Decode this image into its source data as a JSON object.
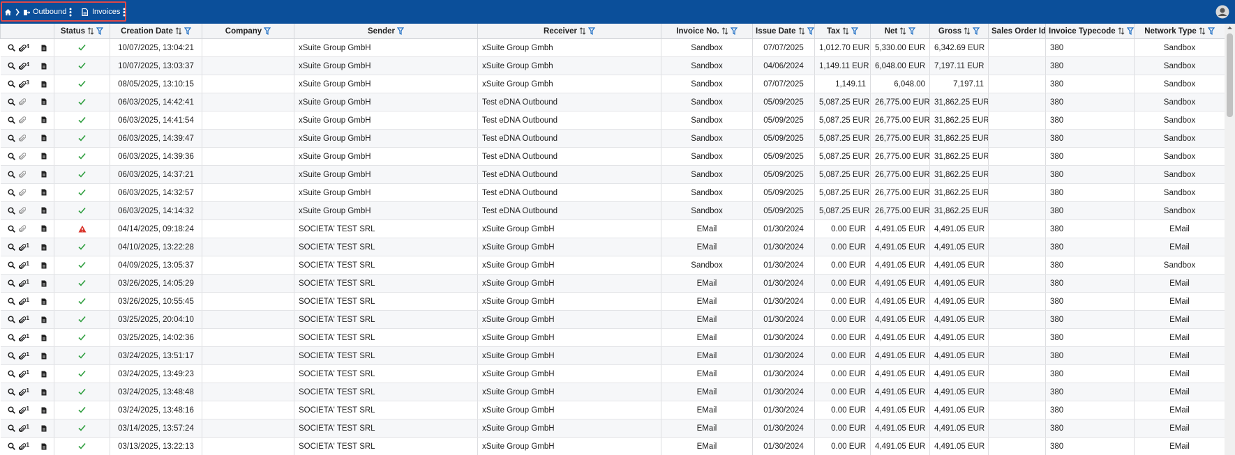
{
  "breadcrumb": [
    "Outbound",
    "Invoices"
  ],
  "table": {
    "columns": [
      "Status",
      "Creation Date",
      "Company",
      "Sender",
      "Receiver",
      "Invoice No.",
      "Issue Date",
      "Tax",
      "Net",
      "Gross",
      "Sales Order Id",
      "Invoice Typecode",
      "Network Type"
    ],
    "rows": [
      {
        "attachments": 4,
        "status": "ok",
        "created": "10/07/2025, 13:04:21",
        "sender": "xSuite Group GmbH",
        "receiver": "xSuite Group Gmbh",
        "invoice_no": "Sandbox",
        "issue_date": "07/07/2025",
        "tax": "1,012.70 EUR",
        "net": "5,330.00 EUR",
        "gross": "6,342.69 EUR",
        "typecode": 380,
        "network_type": "Sandbox"
      },
      {
        "attachments": 4,
        "status": "ok",
        "created": "10/07/2025, 13:03:37",
        "sender": "xSuite Group GmbH",
        "receiver": "xSuite Group Gmbh",
        "invoice_no": "Sandbox",
        "issue_date": "04/06/2024",
        "tax": "1,149.11 EUR",
        "net": "6,048.00 EUR",
        "gross": "7,197.11 EUR",
        "typecode": 380,
        "network_type": "Sandbox"
      },
      {
        "attachments": 3,
        "status": "ok",
        "created": "08/05/2025, 13:10:15",
        "sender": "xSuite Group GmbH",
        "receiver": "xSuite Group Gmbh",
        "invoice_no": "Sandbox",
        "issue_date": "07/07/2025",
        "tax": "1,149.11",
        "net": "6,048.00",
        "gross": "7,197.11",
        "typecode": 380,
        "network_type": "Sandbox"
      },
      {
        "status": "ok",
        "created": "06/03/2025, 14:42:41",
        "sender": "xSuite Group GmbH",
        "receiver": "Test eDNA Outbound",
        "invoice_no": "Sandbox",
        "issue_date": "05/09/2025",
        "tax": "5,087.25 EUR",
        "net": "26,775.00 EUR",
        "gross": "31,862.25 EUR",
        "typecode": 380,
        "network_type": "Sandbox"
      },
      {
        "status": "ok",
        "created": "06/03/2025, 14:41:54",
        "sender": "xSuite Group GmbH",
        "receiver": "Test eDNA Outbound",
        "invoice_no": "Sandbox",
        "issue_date": "05/09/2025",
        "tax": "5,087.25 EUR",
        "net": "26,775.00 EUR",
        "gross": "31,862.25 EUR",
        "typecode": 380,
        "network_type": "Sandbox"
      },
      {
        "status": "ok",
        "created": "06/03/2025, 14:39:47",
        "sender": "xSuite Group GmbH",
        "receiver": "Test eDNA Outbound",
        "invoice_no": "Sandbox",
        "issue_date": "05/09/2025",
        "tax": "5,087.25 EUR",
        "net": "26,775.00 EUR",
        "gross": "31,862.25 EUR",
        "typecode": 380,
        "network_type": "Sandbox"
      },
      {
        "status": "ok",
        "created": "06/03/2025, 14:39:36",
        "sender": "xSuite Group GmbH",
        "receiver": "Test eDNA Outbound",
        "invoice_no": "Sandbox",
        "issue_date": "05/09/2025",
        "tax": "5,087.25 EUR",
        "net": "26,775.00 EUR",
        "gross": "31,862.25 EUR",
        "typecode": 380,
        "network_type": "Sandbox"
      },
      {
        "status": "ok",
        "created": "06/03/2025, 14:37:21",
        "sender": "xSuite Group GmbH",
        "receiver": "Test eDNA Outbound",
        "invoice_no": "Sandbox",
        "issue_date": "05/09/2025",
        "tax": "5,087.25 EUR",
        "net": "26,775.00 EUR",
        "gross": "31,862.25 EUR",
        "typecode": 380,
        "network_type": "Sandbox"
      },
      {
        "status": "ok",
        "created": "06/03/2025, 14:32:57",
        "sender": "xSuite Group GmbH",
        "receiver": "Test eDNA Outbound",
        "invoice_no": "Sandbox",
        "issue_date": "05/09/2025",
        "tax": "5,087.25 EUR",
        "net": "26,775.00 EUR",
        "gross": "31,862.25 EUR",
        "typecode": 380,
        "network_type": "Sandbox"
      },
      {
        "status": "ok",
        "created": "06/03/2025, 14:14:32",
        "sender": "xSuite Group GmbH",
        "receiver": "Test eDNA Outbound",
        "invoice_no": "Sandbox",
        "issue_date": "05/09/2025",
        "tax": "5,087.25 EUR",
        "net": "26,775.00 EUR",
        "gross": "31,862.25 EUR",
        "typecode": 380,
        "network_type": "Sandbox"
      },
      {
        "status": "warning",
        "created": "04/14/2025, 09:18:24",
        "sender": "SOCIETA' TEST SRL",
        "receiver": "xSuite Group GmbH",
        "invoice_no": "EMail",
        "issue_date": "01/30/2024",
        "tax": "0.00 EUR",
        "net": "4,491.05 EUR",
        "gross": "4,491.05 EUR",
        "typecode": 380,
        "network_type": "EMail"
      },
      {
        "attachments": 1,
        "status": "ok",
        "created": "04/10/2025, 13:22:28",
        "sender": "SOCIETA' TEST SRL",
        "receiver": "xSuite Group GmbH",
        "invoice_no": "EMail",
        "issue_date": "01/30/2024",
        "tax": "0.00 EUR",
        "net": "4,491.05 EUR",
        "gross": "4,491.05 EUR",
        "typecode": 380,
        "network_type": "EMail"
      },
      {
        "attachments": 1,
        "status": "ok",
        "created": "04/09/2025, 13:05:37",
        "sender": "SOCIETA' TEST SRL",
        "receiver": "xSuite Group GmbH",
        "invoice_no": "Sandbox",
        "issue_date": "01/30/2024",
        "tax": "0.00 EUR",
        "net": "4,491.05 EUR",
        "gross": "4,491.05 EUR",
        "typecode": 380,
        "network_type": "Sandbox"
      },
      {
        "attachments": 1,
        "status": "ok",
        "created": "03/26/2025, 14:05:29",
        "sender": "SOCIETA' TEST SRL",
        "receiver": "xSuite Group GmbH",
        "invoice_no": "EMail",
        "issue_date": "01/30/2024",
        "tax": "0.00 EUR",
        "net": "4,491.05 EUR",
        "gross": "4,491.05 EUR",
        "typecode": 380,
        "network_type": "EMail"
      },
      {
        "attachments": 1,
        "status": "ok",
        "created": "03/26/2025, 10:55:45",
        "sender": "SOCIETA' TEST SRL",
        "receiver": "xSuite Group GmbH",
        "invoice_no": "EMail",
        "issue_date": "01/30/2024",
        "tax": "0.00 EUR",
        "net": "4,491.05 EUR",
        "gross": "4,491.05 EUR",
        "typecode": 380,
        "network_type": "EMail"
      },
      {
        "attachments": 1,
        "status": "ok",
        "created": "03/25/2025, 20:04:10",
        "sender": "SOCIETA' TEST SRL",
        "receiver": "xSuite Group GmbH",
        "invoice_no": "EMail",
        "issue_date": "01/30/2024",
        "tax": "0.00 EUR",
        "net": "4,491.05 EUR",
        "gross": "4,491.05 EUR",
        "typecode": 380,
        "network_type": "EMail"
      },
      {
        "attachments": 1,
        "status": "ok",
        "created": "03/25/2025, 14:02:36",
        "sender": "SOCIETA' TEST SRL",
        "receiver": "xSuite Group GmbH",
        "invoice_no": "EMail",
        "issue_date": "01/30/2024",
        "tax": "0.00 EUR",
        "net": "4,491.05 EUR",
        "gross": "4,491.05 EUR",
        "typecode": 380,
        "network_type": "EMail"
      },
      {
        "attachments": 1,
        "status": "ok",
        "created": "03/24/2025, 13:51:17",
        "sender": "SOCIETA' TEST SRL",
        "receiver": "xSuite Group GmbH",
        "invoice_no": "EMail",
        "issue_date": "01/30/2024",
        "tax": "0.00 EUR",
        "net": "4,491.05 EUR",
        "gross": "4,491.05 EUR",
        "typecode": 380,
        "network_type": "EMail"
      },
      {
        "attachments": 1,
        "status": "ok",
        "created": "03/24/2025, 13:49:23",
        "sender": "SOCIETA' TEST SRL",
        "receiver": "xSuite Group GmbH",
        "invoice_no": "EMail",
        "issue_date": "01/30/2024",
        "tax": "0.00 EUR",
        "net": "4,491.05 EUR",
        "gross": "4,491.05 EUR",
        "typecode": 380,
        "network_type": "EMail"
      },
      {
        "attachments": 1,
        "status": "ok",
        "created": "03/24/2025, 13:48:48",
        "sender": "SOCIETA' TEST SRL",
        "receiver": "xSuite Group GmbH",
        "invoice_no": "EMail",
        "issue_date": "01/30/2024",
        "tax": "0.00 EUR",
        "net": "4,491.05 EUR",
        "gross": "4,491.05 EUR",
        "typecode": 380,
        "network_type": "EMail"
      },
      {
        "attachments": 1,
        "status": "ok",
        "created": "03/24/2025, 13:48:16",
        "sender": "SOCIETA' TEST SRL",
        "receiver": "xSuite Group GmbH",
        "invoice_no": "EMail",
        "issue_date": "01/30/2024",
        "tax": "0.00 EUR",
        "net": "4,491.05 EUR",
        "gross": "4,491.05 EUR",
        "typecode": 380,
        "network_type": "EMail"
      },
      {
        "attachments": 1,
        "status": "ok",
        "created": "03/14/2025, 13:57:24",
        "sender": "SOCIETA' TEST SRL",
        "receiver": "xSuite Group GmbH",
        "invoice_no": "EMail",
        "issue_date": "01/30/2024",
        "tax": "0.00 EUR",
        "net": "4,491.05 EUR",
        "gross": "4,491.05 EUR",
        "typecode": 380,
        "network_type": "EMail"
      },
      {
        "attachments": 1,
        "status": "ok",
        "created": "03/13/2025, 13:22:13",
        "sender": "SOCIETA' TEST SRL",
        "receiver": "xSuite Group GmbH",
        "invoice_no": "EMail",
        "issue_date": "01/30/2024",
        "tax": "0.00 EUR",
        "net": "4,491.05 EUR",
        "gross": "4,491.05 EUR",
        "typecode": 380,
        "network_type": "EMail"
      }
    ]
  }
}
